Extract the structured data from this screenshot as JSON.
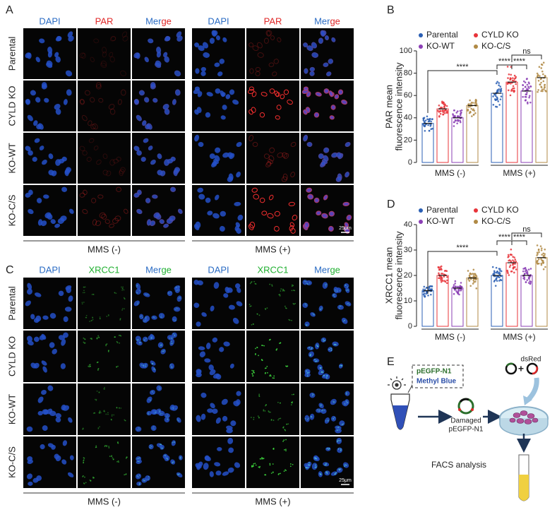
{
  "panel_a": {
    "label": "A",
    "columns": [
      "DAPI",
      "PAR",
      "Merge",
      "DAPI",
      "PAR",
      "Merge"
    ],
    "rows": [
      "Parental",
      "CYLD KO",
      "KO-WT",
      "KO-C/S"
    ],
    "groups": [
      "MMS (-)",
      "MMS (+)"
    ],
    "scale_bar": "25μm"
  },
  "panel_c": {
    "label": "C",
    "columns": [
      "DAPI",
      "XRCC1",
      "Merge",
      "DAPI",
      "XRCC1",
      "Merge"
    ],
    "rows": [
      "Parental",
      "CYLD KO",
      "KO-WT",
      "KO-C/S"
    ],
    "groups": [
      "MMS (-)",
      "MMS (+)"
    ],
    "scale_bar": "25μm"
  },
  "chart_data": [
    {
      "type": "bar",
      "label": "B",
      "ylabel": [
        "PAR mean",
        "fluorescence intensity"
      ],
      "categories": [
        "MMS (-)",
        "MMS (+)"
      ],
      "series": [
        {
          "name": "Parental",
          "color": "#2b5fb4",
          "values": [
            35,
            62
          ]
        },
        {
          "name": "CYLD KO",
          "color": "#e8343a",
          "values": [
            48,
            72
          ]
        },
        {
          "name": "KO-WT",
          "color": "#8b3fb5",
          "values": [
            40,
            64
          ]
        },
        {
          "name": "KO-C/S",
          "color": "#b08a45",
          "values": [
            51,
            76
          ]
        }
      ],
      "ylim": [
        0,
        100
      ],
      "yticks": [
        0,
        20,
        40,
        60,
        80,
        100
      ],
      "annotations": [
        "****",
        "****",
        "****",
        "ns"
      ]
    },
    {
      "type": "bar",
      "label": "D",
      "ylabel": [
        "XRCC1 mean",
        "fluorescence intensity"
      ],
      "categories": [
        "MMS (-)",
        "MMS (+)"
      ],
      "series": [
        {
          "name": "Parental",
          "color": "#2b5fb4",
          "values": [
            14,
            20
          ]
        },
        {
          "name": "CYLD KO",
          "color": "#e8343a",
          "values": [
            20,
            25
          ]
        },
        {
          "name": "KO-WT",
          "color": "#8b3fb5",
          "values": [
            15,
            20
          ]
        },
        {
          "name": "KO-C/S",
          "color": "#b08a45",
          "values": [
            19,
            27
          ]
        }
      ],
      "ylim": [
        0,
        40
      ],
      "yticks": [
        0,
        10,
        20,
        30,
        40
      ],
      "annotations": [
        "****",
        "****",
        "****",
        "ns"
      ]
    }
  ],
  "panel_e": {
    "label": "E",
    "box": [
      "pEGFP-N1",
      "Methyl Blue"
    ],
    "damaged": [
      "Damaged",
      "pEGFP-N1"
    ],
    "dsred": "dsRed",
    "plus": "+",
    "facs": "FACS analysis"
  }
}
